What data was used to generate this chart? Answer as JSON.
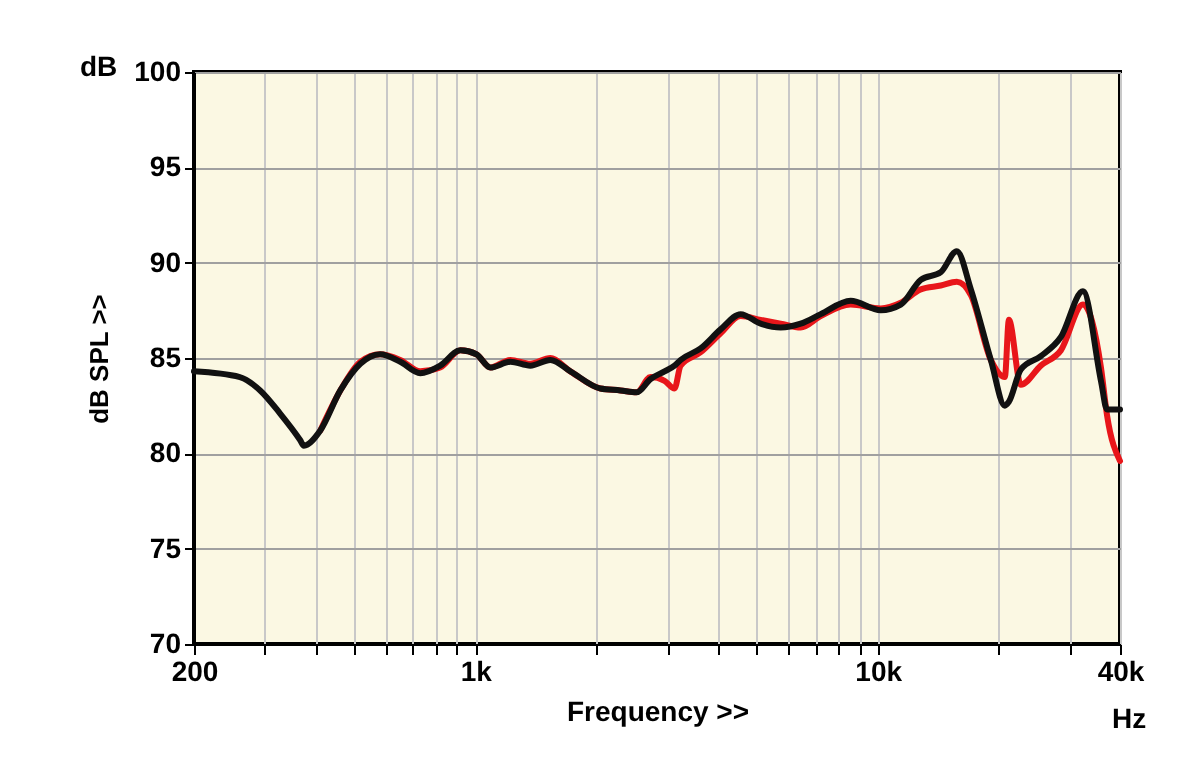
{
  "chart_data": {
    "type": "line",
    "xlabel": "Frequency >>",
    "ylabel": "dB SPL >>",
    "annotations": [
      "dB",
      "Hz"
    ],
    "log": "x",
    "grid": true,
    "legend": false,
    "line_style": "solid",
    "marker": "none",
    "xlim": [
      200,
      40000
    ],
    "ylim": [
      70,
      100
    ],
    "yticks": [
      70,
      75,
      80,
      85,
      90,
      95,
      100
    ],
    "xticks": [
      {
        "value": 200,
        "label": "200"
      },
      {
        "value": 300,
        "label": null
      },
      {
        "value": 400,
        "label": null
      },
      {
        "value": 500,
        "label": null
      },
      {
        "value": 600,
        "label": null
      },
      {
        "value": 700,
        "label": null
      },
      {
        "value": 800,
        "label": null
      },
      {
        "value": 900,
        "label": null
      },
      {
        "value": 1000,
        "label": "1k"
      },
      {
        "value": 2000,
        "label": null
      },
      {
        "value": 3000,
        "label": null
      },
      {
        "value": 4000,
        "label": null
      },
      {
        "value": 5000,
        "label": null
      },
      {
        "value": 6000,
        "label": null
      },
      {
        "value": 7000,
        "label": null
      },
      {
        "value": 8000,
        "label": null
      },
      {
        "value": 9000,
        "label": null
      },
      {
        "value": 10000,
        "label": "10k"
      },
      {
        "value": 20000,
        "label": null
      },
      {
        "value": 30000,
        "label": null
      },
      {
        "value": 40000,
        "label": "40k"
      }
    ],
    "x": [
      200,
      260,
      292,
      327,
      367,
      375,
      412,
      462,
      518,
      580,
      651,
      730,
      818,
      918,
      1006,
      1090,
      1222,
      1370,
      1537,
      1723,
      2046,
      2295,
      2516,
      2726,
      2953,
      3127,
      3237,
      3630,
      4070,
      4564,
      5118,
      5739,
      6436,
      7216,
      8566,
      10172,
      11408,
      12794,
      14347,
      15725,
      17040,
      19100,
      20700,
      21180,
      22680,
      25430,
      28520,
      32360,
      35870,
      37140,
      40000
    ],
    "series": [
      {
        "color": "#e8161a",
        "values": [
          null,
          null,
          null,
          null,
          null,
          null,
          81.2,
          83.3,
          84.8,
          85.2,
          84.9,
          84.3,
          84.5,
          85.4,
          85.2,
          84.5,
          84.9,
          84.7,
          85.0,
          84.3,
          83.4,
          83.3,
          83.2,
          84.0,
          83.8,
          83.4,
          84.6,
          85.3,
          86.3,
          87.2,
          87.0,
          86.8,
          86.6,
          87.2,
          87.8,
          87.6,
          87.9,
          88.6,
          88.8,
          89.0,
          88.3,
          84.9,
          84.0,
          87.0,
          83.6,
          84.6,
          85.4,
          87.8,
          84.5,
          82.0,
          79.6
        ]
      },
      {
        "color": "#111111",
        "values": [
          84.3,
          84.0,
          83.3,
          82.1,
          80.7,
          80.4,
          81.2,
          83.3,
          84.7,
          85.2,
          84.8,
          84.2,
          84.6,
          85.4,
          85.2,
          84.5,
          84.8,
          84.6,
          84.9,
          84.3,
          83.4,
          83.3,
          83.2,
          83.9,
          84.3,
          84.6,
          84.9,
          85.5,
          86.5,
          87.3,
          86.8,
          86.6,
          86.8,
          87.3,
          88.0,
          87.5,
          87.8,
          89.1,
          89.5,
          90.6,
          88.6,
          84.9,
          82.5,
          82.7,
          84.4,
          85.1,
          86.1,
          88.5,
          83.8,
          82.3,
          82.3
        ]
      }
    ]
  }
}
